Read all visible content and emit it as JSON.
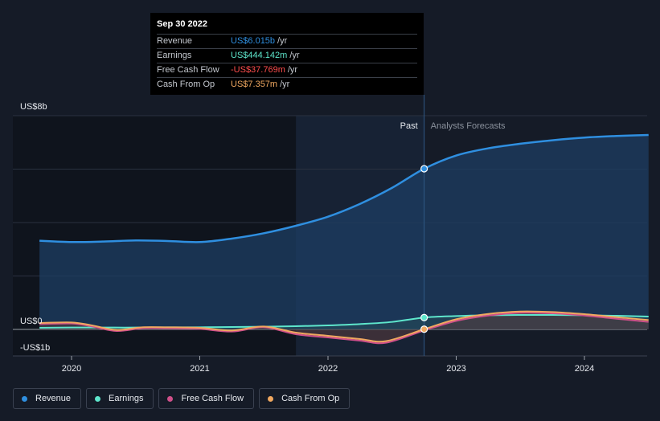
{
  "chart_data": {
    "type": "line",
    "title": "",
    "x_ticks": [
      "2020",
      "2021",
      "2022",
      "2023",
      "2024"
    ],
    "ylim": [
      -1,
      8
    ],
    "y_axis_labels": {
      "top": "US$8b",
      "zero": "US$0",
      "bottom": "-US$1b"
    },
    "divider_labels": {
      "past": "Past",
      "forecast": "Analysts Forecasts"
    },
    "highlight_date": 2022.75,
    "series": [
      {
        "name": "Revenue",
        "color": "#2f8fe0",
        "points": [
          [
            2019.75,
            3.32
          ],
          [
            2020.0,
            3.27
          ],
          [
            2020.25,
            3.29
          ],
          [
            2020.5,
            3.33
          ],
          [
            2020.75,
            3.31
          ],
          [
            2021.0,
            3.27
          ],
          [
            2021.25,
            3.4
          ],
          [
            2021.5,
            3.6
          ],
          [
            2021.75,
            3.88
          ],
          [
            2022.0,
            4.22
          ],
          [
            2022.25,
            4.7
          ],
          [
            2022.5,
            5.3
          ],
          [
            2022.75,
            6.015
          ],
          [
            2023.0,
            6.51
          ],
          [
            2023.25,
            6.78
          ],
          [
            2023.5,
            6.95
          ],
          [
            2023.75,
            7.08
          ],
          [
            2024.0,
            7.18
          ],
          [
            2024.25,
            7.24
          ],
          [
            2024.5,
            7.28
          ]
        ]
      },
      {
        "name": "Earnings",
        "color": "#5ee6cc",
        "points": [
          [
            2019.75,
            0.06
          ],
          [
            2020.0,
            0.07
          ],
          [
            2020.25,
            0.07
          ],
          [
            2020.5,
            0.07
          ],
          [
            2020.75,
            0.08
          ],
          [
            2021.0,
            0.08
          ],
          [
            2021.25,
            0.09
          ],
          [
            2021.5,
            0.1
          ],
          [
            2021.75,
            0.12
          ],
          [
            2022.0,
            0.15
          ],
          [
            2022.25,
            0.2
          ],
          [
            2022.5,
            0.28
          ],
          [
            2022.75,
            0.444
          ],
          [
            2023.0,
            0.5
          ],
          [
            2023.25,
            0.53
          ],
          [
            2023.5,
            0.54
          ],
          [
            2023.75,
            0.54
          ],
          [
            2024.0,
            0.53
          ],
          [
            2024.25,
            0.51
          ],
          [
            2024.5,
            0.48
          ]
        ]
      },
      {
        "name": "Free Cash Flow",
        "color": "#d0508a",
        "points": [
          [
            2019.75,
            0.2
          ],
          [
            2020.0,
            0.22
          ],
          [
            2020.15,
            0.12
          ],
          [
            2020.35,
            -0.06
          ],
          [
            2020.55,
            0.04
          ],
          [
            2020.75,
            0.04
          ],
          [
            2021.0,
            0.02
          ],
          [
            2021.25,
            -0.08
          ],
          [
            2021.5,
            0.08
          ],
          [
            2021.75,
            -0.18
          ],
          [
            2022.0,
            -0.3
          ],
          [
            2022.25,
            -0.42
          ],
          [
            2022.45,
            -0.5
          ],
          [
            2022.75,
            -0.038
          ],
          [
            2023.0,
            0.32
          ],
          [
            2023.25,
            0.52
          ],
          [
            2023.5,
            0.62
          ],
          [
            2023.75,
            0.6
          ],
          [
            2024.0,
            0.52
          ],
          [
            2024.25,
            0.4
          ],
          [
            2024.5,
            0.28
          ]
        ]
      },
      {
        "name": "Cash From Op",
        "color": "#f0a860",
        "points": [
          [
            2019.75,
            0.24
          ],
          [
            2020.0,
            0.26
          ],
          [
            2020.15,
            0.16
          ],
          [
            2020.35,
            -0.02
          ],
          [
            2020.55,
            0.08
          ],
          [
            2020.75,
            0.08
          ],
          [
            2021.0,
            0.06
          ],
          [
            2021.25,
            -0.04
          ],
          [
            2021.5,
            0.11
          ],
          [
            2021.75,
            -0.12
          ],
          [
            2022.0,
            -0.24
          ],
          [
            2022.25,
            -0.36
          ],
          [
            2022.45,
            -0.44
          ],
          [
            2022.75,
            0.007
          ],
          [
            2023.0,
            0.38
          ],
          [
            2023.25,
            0.58
          ],
          [
            2023.5,
            0.67
          ],
          [
            2023.75,
            0.65
          ],
          [
            2024.0,
            0.57
          ],
          [
            2024.25,
            0.46
          ],
          [
            2024.5,
            0.35
          ]
        ]
      }
    ]
  },
  "tooltip": {
    "date": "Sep 30 2022",
    "rows": [
      {
        "label": "Revenue",
        "value": "US$6.015b",
        "unit": "/yr",
        "color": "#2f8fe0"
      },
      {
        "label": "Earnings",
        "value": "US$444.142m",
        "unit": "/yr",
        "color": "#5ee6cc"
      },
      {
        "label": "Free Cash Flow",
        "value": "-US$37.769m",
        "unit": "/yr",
        "color": "#ff4d4d"
      },
      {
        "label": "Cash From Op",
        "value": "US$7.357m",
        "unit": "/yr",
        "color": "#f0a860"
      }
    ]
  },
  "legend": [
    {
      "label": "Revenue",
      "color": "#2f8fe0"
    },
    {
      "label": "Earnings",
      "color": "#5ee6cc"
    },
    {
      "label": "Free Cash Flow",
      "color": "#d0508a"
    },
    {
      "label": "Cash From Op",
      "color": "#f0a860"
    }
  ]
}
